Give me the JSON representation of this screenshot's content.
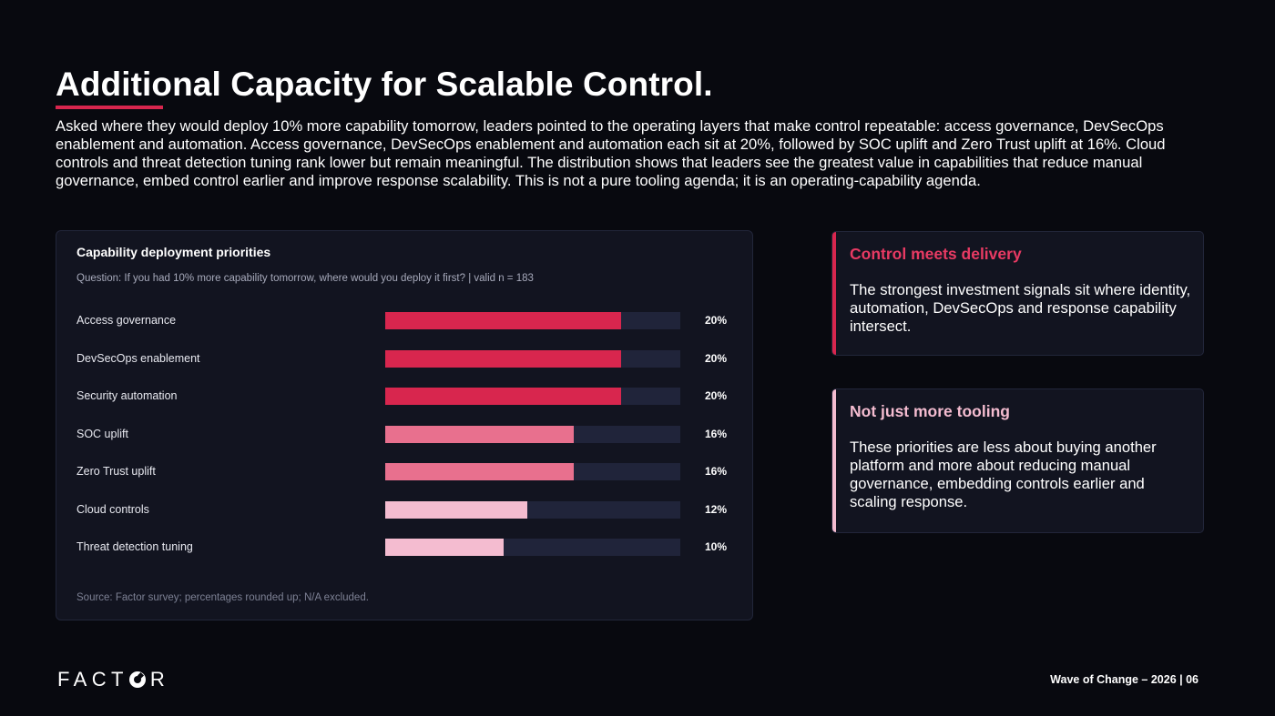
{
  "title": "Additional Capacity for Scalable Control.",
  "intro": "Asked where they would deploy 10% more capability tomorrow, leaders pointed to the operating layers that make control repeatable: access governance, DevSecOps enablement and automation. Access governance, DevSecOps enablement and automation each sit at 20%, followed by SOC uplift and Zero Trust uplift at 16%. Cloud controls and threat detection tuning rank lower but remain meaningful. The distribution shows that leaders see the greatest value in capabilities that reduce manual governance, embed control earlier and improve response scalability. This is not a pure tooling agenda; it is an operating-capability agenda.",
  "chart_data": {
    "type": "bar",
    "orientation": "horizontal",
    "title": "Capability deployment priorities",
    "subtitle": "Question: If you had 10% more capability tomorrow, where would you deploy it first? | valid n = 183",
    "categories": [
      "Access governance",
      "DevSecOps enablement",
      "Security automation",
      "SOC uplift",
      "Zero Trust uplift",
      "Cloud controls",
      "Threat detection tuning"
    ],
    "values": [
      20,
      20,
      20,
      16,
      16,
      12,
      10
    ],
    "value_labels": [
      "20%",
      "20%",
      "20%",
      "16%",
      "16%",
      "12%",
      "10%"
    ],
    "xlim": [
      0,
      25
    ],
    "colors": [
      "#d8264e",
      "#d8264e",
      "#d8264e",
      "#e8708e",
      "#e8708e",
      "#f4bcd0",
      "#f4bcd0"
    ],
    "track_color": "#20243a",
    "source": "Source: Factor survey; percentages rounded up; N/A excluded."
  },
  "cards": [
    {
      "title": "Control meets delivery",
      "body": "The strongest investment signals sit where identity, automation, DevSecOps and response capability intersect.",
      "accent": "#d8264e",
      "title_color": "#e83a63"
    },
    {
      "title": "Not just more tooling",
      "body": "These priorities are less about buying another platform and more about reducing manual governance, embedding controls earlier and scaling response.",
      "accent": "#f4bcd0",
      "title_color": "#f4bcd0"
    }
  ],
  "logo": {
    "part1": "FACT",
    "part2": "R"
  },
  "footer": "Wave of Change – 2026 | 06"
}
